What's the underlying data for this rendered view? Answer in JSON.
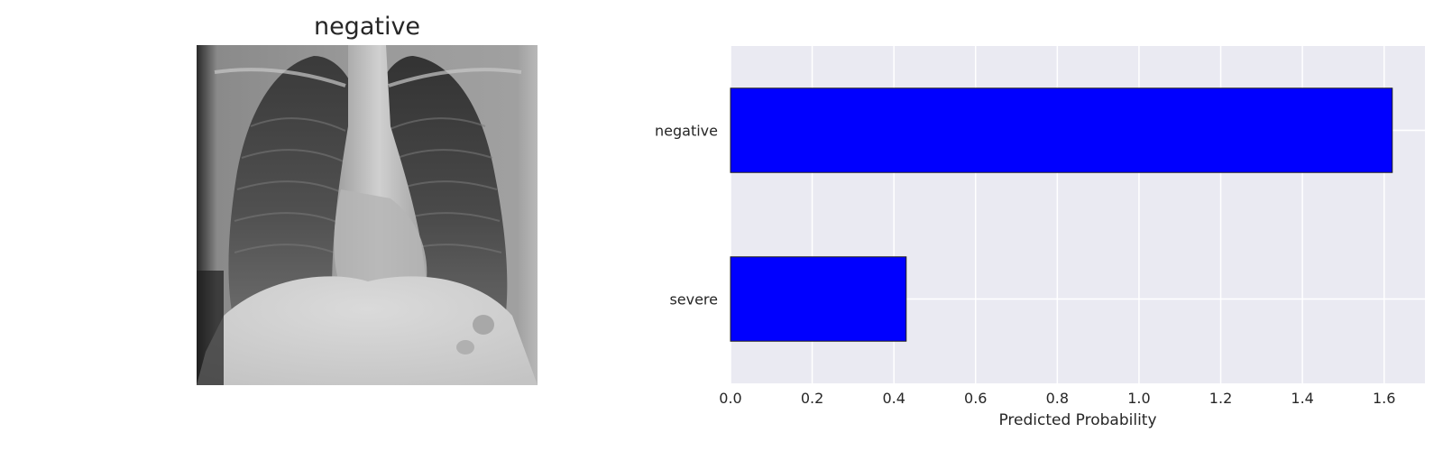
{
  "image_panel": {
    "title": "negative"
  },
  "chart_data": {
    "type": "bar",
    "orientation": "horizontal",
    "categories": [
      "negative",
      "severe"
    ],
    "values": [
      1.62,
      0.43
    ],
    "xlabel": "Predicted Probability",
    "ylabel": "",
    "xlim": [
      0,
      1.7
    ],
    "xticks": [
      "0.0",
      "0.2",
      "0.4",
      "0.6",
      "0.8",
      "1.0",
      "1.2",
      "1.4",
      "1.6"
    ],
    "grid": true,
    "colors": {
      "bar": "#0000ff",
      "bar_edge": "#222222",
      "plot_bg": "#eaeaf2",
      "grid": "#ffffff",
      "text": "#262626"
    }
  }
}
